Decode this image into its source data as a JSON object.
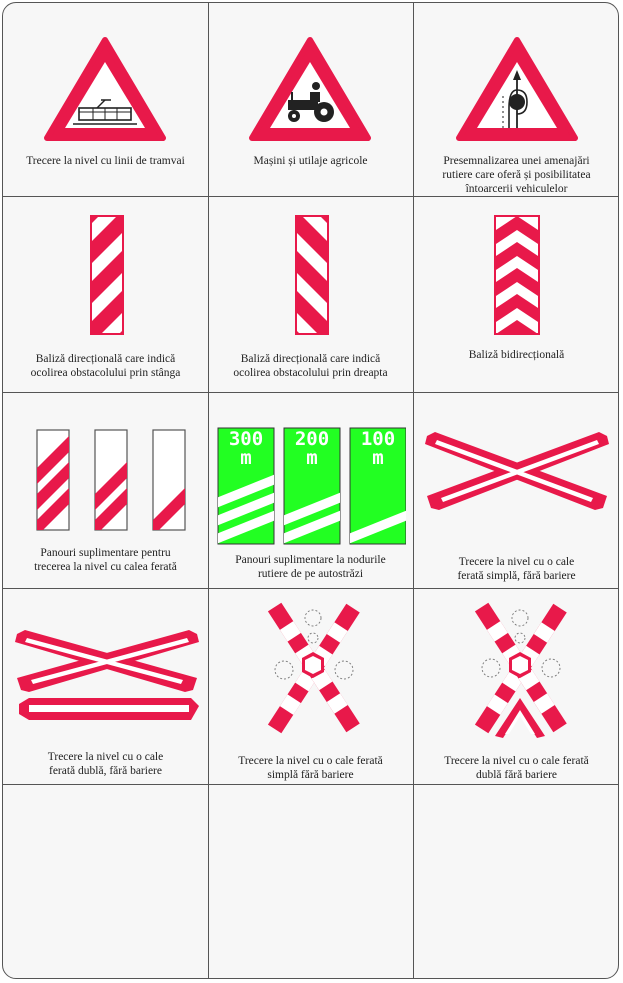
{
  "colors": {
    "red": "#e8194a",
    "green": "#22ff22",
    "border": "#555555",
    "white": "#ffffff"
  },
  "cells": [
    {
      "caption": "Trecere la nivel cu linii de tramvai",
      "icon": "tram-crossing-icon"
    },
    {
      "caption": "Mașini și utilaje agricole",
      "icon": "tractor-icon"
    },
    {
      "caption": "Presemnalizarea unei amenajări\nrutiere care oferă și posibilitatea\nîntoarcerii vehiculelor",
      "icon": "u-turn-presignal-icon"
    },
    {
      "caption": "Baliză direcțională care indică\nocolirea obstacolului prin stânga",
      "icon": "left-beacon-icon"
    },
    {
      "caption": "Baliză direcțională care indică\nocolirea obstacolului prin dreapta",
      "icon": "right-beacon-icon"
    },
    {
      "caption": "Baliză bidirecțională",
      "icon": "bidirectional-beacon-icon"
    },
    {
      "caption": "Panouri suplimentare pentru\ntrecerea la nivel cu calea ferată",
      "icon": "railway-countdown-panels-icon"
    },
    {
      "caption": "Panouri suplimentare la nodurile\nrutiere de pe autostrăzi",
      "icon": "motorway-exit-panels-icon",
      "panels": [
        "300\nm",
        "200\nm",
        "100\nm"
      ]
    },
    {
      "caption": "Trecere la nivel cu o cale\nferată simplă, fără bariere",
      "icon": "single-cross-icon"
    },
    {
      "caption": "Trecere la nivel cu o cale\nferată dublă, fără bariere",
      "icon": "double-cross-icon"
    },
    {
      "caption": "Trecere la nivel cu o cale ferată\nsimplă fără bariere",
      "icon": "single-cross-lights-icon"
    },
    {
      "caption": "Trecere la nivel cu o cale ferată\ndublă fără bariere",
      "icon": "double-cross-lights-icon"
    },
    {
      "caption": "",
      "icon": ""
    },
    {
      "caption": "",
      "icon": ""
    },
    {
      "caption": "",
      "icon": ""
    }
  ]
}
